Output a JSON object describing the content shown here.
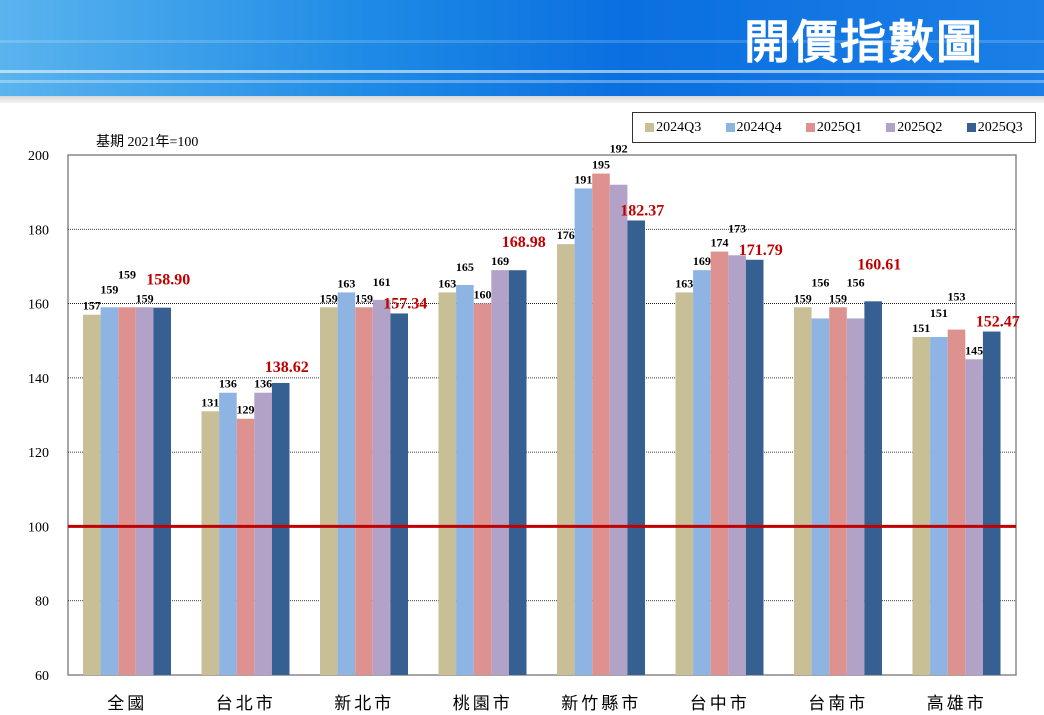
{
  "header": {
    "title": "開價指數圖"
  },
  "chart_data": {
    "type": "bar",
    "title": "開價指數圖",
    "subtitle": "基期 2021年=100",
    "categories": [
      "全國",
      "台北市",
      "新北市",
      "桃園市",
      "新竹縣市",
      "台中市",
      "台南市",
      "高雄市"
    ],
    "series": [
      {
        "name": "2024Q3",
        "color": "#c8bf96",
        "values": [
          157,
          131,
          159,
          163,
          176,
          163,
          159,
          151
        ]
      },
      {
        "name": "2024Q4",
        "color": "#8db4e2",
        "values": [
          159,
          136,
          163,
          165,
          191,
          169,
          156,
          151
        ]
      },
      {
        "name": "2025Q1",
        "color": "#de9290",
        "values": [
          159,
          129,
          159,
          160,
          195,
          174,
          159,
          153
        ]
      },
      {
        "name": "2025Q2",
        "color": "#b3a2c7",
        "values": [
          159,
          136,
          161,
          169,
          192,
          173,
          156,
          145
        ]
      },
      {
        "name": "2025Q3",
        "color": "#376092",
        "values": [
          158.9,
          138.62,
          157.34,
          168.98,
          182.37,
          171.79,
          160.61,
          152.47
        ]
      }
    ],
    "latest_labels": [
      "158.90",
      "138.62",
      "157.34",
      "168.98",
      "182.37",
      "171.79",
      "160.61",
      "152.47"
    ],
    "ylim": [
      60,
      200
    ],
    "yticks": [
      60,
      80,
      100,
      120,
      140,
      160,
      180,
      200
    ],
    "reference_line": 100,
    "reference_color": "#c00000",
    "highlight_label_color": "#c00000",
    "legend": "top-right",
    "grid": true
  }
}
